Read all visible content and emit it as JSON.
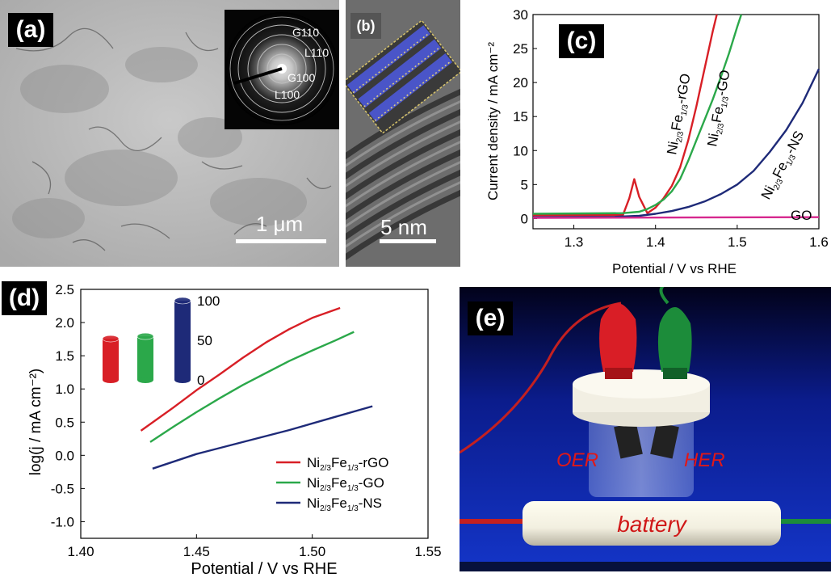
{
  "panel_a": {
    "label": "(a)",
    "saed": [
      "G110",
      "L110",
      "G100",
      "L100"
    ],
    "scale": "1 μm"
  },
  "panel_b": {
    "label": "(b)",
    "scale": "5 nm"
  },
  "panel_e": {
    "label": "(e)",
    "oer": "OER",
    "her": "HER",
    "battery": "battery"
  },
  "chart_data": [
    {
      "type": "line",
      "panel_label": "(c)",
      "xlabel": "Potential / V vs RHE",
      "ylabel": "Current density / mA cm⁻²",
      "xlim": [
        1.25,
        1.6
      ],
      "ylim": [
        -1.5,
        30
      ],
      "xticks": [
        "1.3",
        "1.4",
        "1.5",
        "1.6"
      ],
      "yticks": [
        "0",
        "5",
        "10",
        "15",
        "20",
        "25",
        "30"
      ],
      "series": [
        {
          "name": "Ni2/3Fe1/3-rGO",
          "color": "#d81f26",
          "x": [
            1.25,
            1.36,
            1.368,
            1.374,
            1.38,
            1.39,
            1.4,
            1.41,
            1.42,
            1.43,
            1.44,
            1.45,
            1.46,
            1.47,
            1.475
          ],
          "y": [
            0.5,
            0.5,
            3.0,
            5.8,
            3.2,
            0.8,
            1.6,
            3.0,
            4.8,
            7.5,
            11.5,
            16.5,
            22.0,
            27.5,
            30
          ]
        },
        {
          "name": "Ni2/3Fe1/3-GO",
          "color": "#2ba84a",
          "x": [
            1.25,
            1.36,
            1.38,
            1.39,
            1.4,
            1.41,
            1.42,
            1.43,
            1.44,
            1.45,
            1.46,
            1.47,
            1.48,
            1.49,
            1.5,
            1.505
          ],
          "y": [
            0.7,
            0.8,
            1.0,
            1.4,
            2.0,
            2.8,
            4.0,
            5.8,
            8.5,
            11.5,
            14.5,
            17.5,
            20.8,
            24.3,
            28.2,
            30
          ]
        },
        {
          "name": "Ni2/3Fe1/3-NS",
          "color": "#1e2a78",
          "x": [
            1.25,
            1.35,
            1.38,
            1.4,
            1.42,
            1.44,
            1.46,
            1.48,
            1.5,
            1.52,
            1.54,
            1.56,
            1.58,
            1.6
          ],
          "y": [
            0.2,
            0.25,
            0.4,
            0.7,
            1.1,
            1.7,
            2.5,
            3.6,
            5.0,
            7.0,
            9.8,
            13.0,
            17.0,
            22.0
          ]
        },
        {
          "name": "GO",
          "color": "#d6288e",
          "x": [
            1.25,
            1.6
          ],
          "y": [
            0.1,
            0.2
          ]
        }
      ],
      "labels": {
        "rgo": {
          "main": "Ni",
          "sub1": "2/3",
          "mid": "Fe",
          "sub2": "1/3",
          "tail": "-rGO"
        },
        "go": {
          "main": "Ni",
          "sub1": "2/3",
          "mid": "Fe",
          "sub2": "1/3",
          "tail": "-GO"
        },
        "ns": {
          "main": "Ni",
          "sub1": "2/3",
          "mid": "Fe",
          "sub2": "1/3",
          "tail": "-NS"
        },
        "go_only": "GO"
      }
    },
    {
      "type": "line",
      "panel_label": "(d)",
      "xlabel": "Potential / V vs RHE",
      "ylabel": "log(j / mA cm⁻²)",
      "xlim": [
        1.4,
        1.55
      ],
      "ylim": [
        -1.25,
        2.5
      ],
      "xticks": [
        "1.40",
        "1.45",
        "1.50",
        "1.55"
      ],
      "yticks": [
        "2.5",
        "2.0",
        "1.5",
        "1.0",
        "0.5",
        "0.0",
        "-0.5",
        "-1.0"
      ],
      "series": [
        {
          "name": "Ni2/3Fe1/3-rGO",
          "color": "#d81f26",
          "x": [
            1.426,
            1.44,
            1.45,
            1.46,
            1.47,
            1.48,
            1.49,
            1.5,
            1.512
          ],
          "y": [
            0.37,
            0.72,
            0.98,
            1.22,
            1.47,
            1.7,
            1.9,
            2.07,
            2.22
          ]
        },
        {
          "name": "Ni2/3Fe1/3-GO",
          "color": "#2ba84a",
          "x": [
            1.43,
            1.44,
            1.45,
            1.46,
            1.47,
            1.48,
            1.49,
            1.5,
            1.51,
            1.518
          ],
          "y": [
            0.2,
            0.43,
            0.65,
            0.86,
            1.06,
            1.24,
            1.42,
            1.58,
            1.73,
            1.86
          ]
        },
        {
          "name": "Ni2/3Fe1/3-NS",
          "color": "#1e2a78",
          "x": [
            1.431,
            1.45,
            1.47,
            1.49,
            1.51,
            1.526
          ],
          "y": [
            -0.2,
            0.02,
            0.2,
            0.38,
            0.58,
            0.74
          ]
        }
      ],
      "legend": [
        {
          "main": "Ni",
          "sub1": "2/3",
          "mid": "Fe",
          "sub2": "1/3",
          "tail": "-rGO",
          "color": "#d81f26"
        },
        {
          "main": "Ni",
          "sub1": "2/3",
          "mid": "Fe",
          "sub2": "1/3",
          "tail": "-GO",
          "color": "#2ba84a"
        },
        {
          "main": "Ni",
          "sub1": "2/3",
          "mid": "Fe",
          "sub2": "1/3",
          "tail": "-NS",
          "color": "#1e2a78"
        }
      ],
      "inset": {
        "ticks": [
          "100",
          "50",
          "0"
        ],
        "bars": [
          {
            "value": 52,
            "color": "#d81f26"
          },
          {
            "value": 55,
            "color": "#2ba84a"
          },
          {
            "value": 100,
            "color": "#1e2a78"
          }
        ]
      }
    }
  ]
}
